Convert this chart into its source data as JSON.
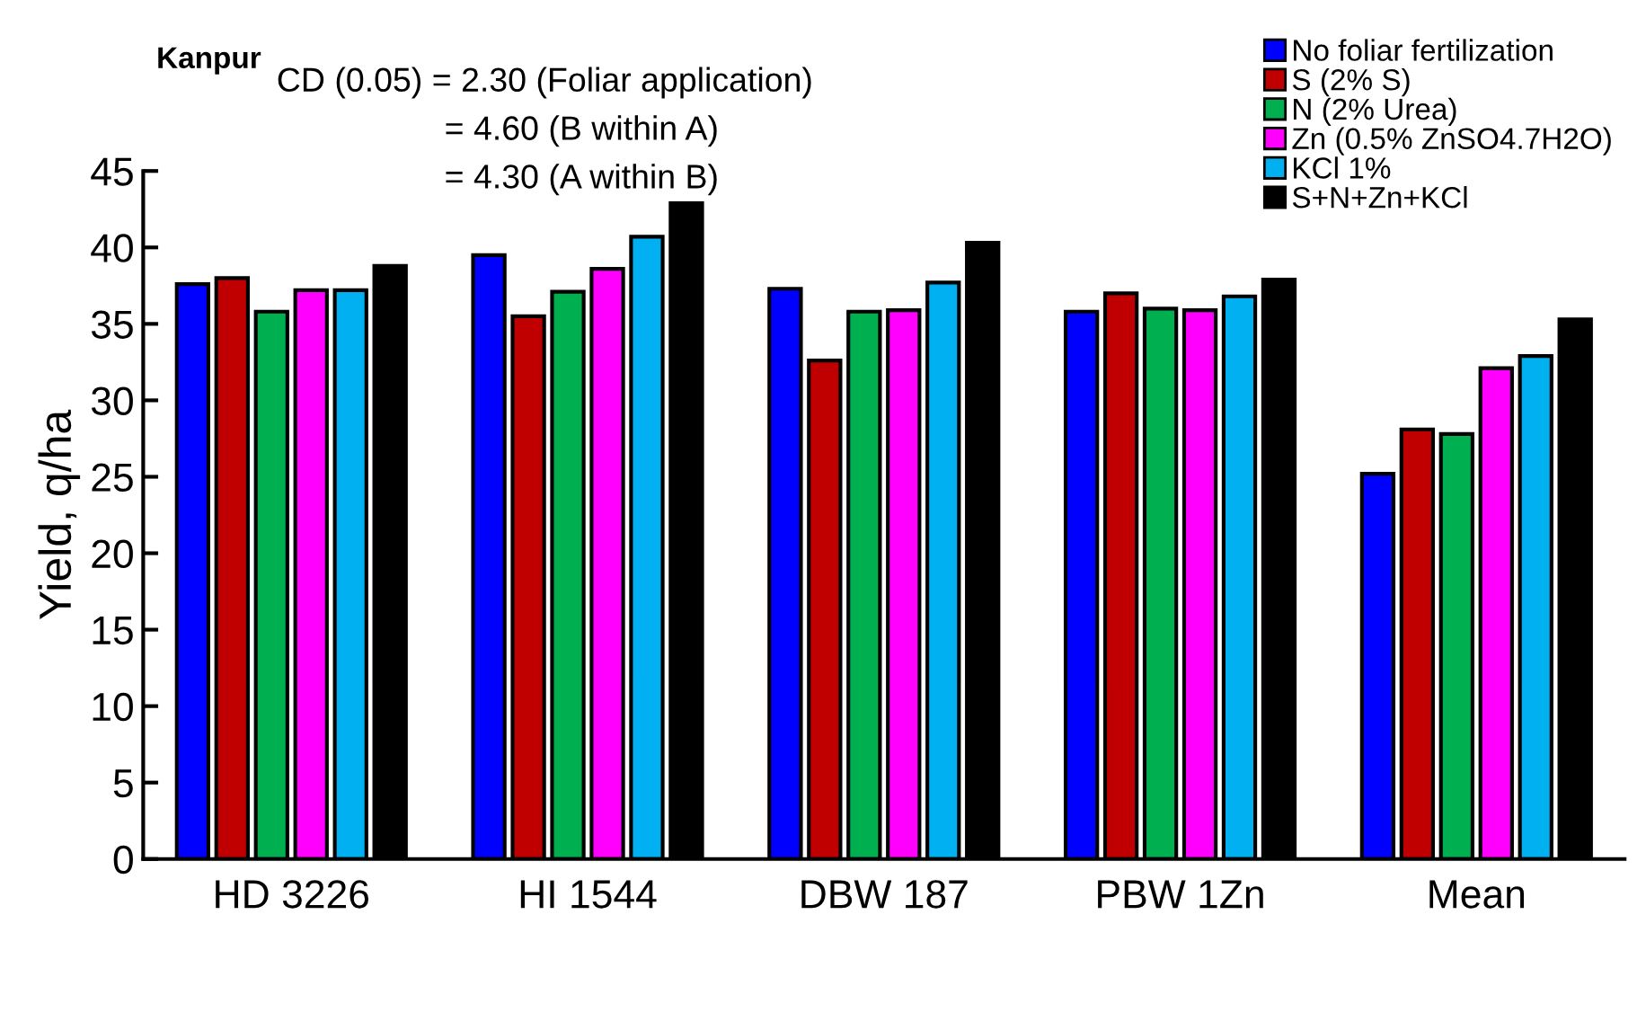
{
  "chart_data": {
    "type": "bar",
    "ylabel": "Yield, q/ha",
    "categories": [
      "HD 3226",
      "HI 1544",
      "DBW 187",
      "PBW 1Zn",
      "Mean"
    ],
    "series": [
      {
        "name": "No foliar fertilization",
        "color": "#0000ff",
        "values": [
          37.6,
          39.5,
          37.3,
          35.8,
          25.2
        ]
      },
      {
        "name": "S (2% S)",
        "color": "#c00000",
        "values": [
          38.0,
          35.5,
          32.6,
          37.0,
          28.1
        ]
      },
      {
        "name": "N (2% Urea)",
        "color": "#00b050",
        "values": [
          35.8,
          37.1,
          35.8,
          36.0,
          27.8
        ]
      },
      {
        "name": "Zn (0.5% ZnSO4.7H2O)",
        "color": "#ff00ff",
        "values": [
          37.2,
          38.6,
          35.9,
          35.9,
          32.1
        ]
      },
      {
        "name": "KCl 1%",
        "color": "#00b0f0",
        "values": [
          37.2,
          40.7,
          37.7,
          36.8,
          32.9
        ]
      },
      {
        "name": "S+N+Zn+KCl",
        "color": "#000000",
        "values": [
          38.8,
          42.9,
          40.3,
          37.9,
          35.3
        ]
      }
    ],
    "ylim": [
      0,
      45
    ],
    "yticks": [
      0,
      5,
      10,
      15,
      20,
      25,
      30,
      35,
      40,
      45
    ],
    "grid": false,
    "legend": "top right",
    "annotations": [
      "Kanpur",
      "CD (0.05) = 2.30 (Foliar application)",
      "= 4.60 (B within A)",
      "= 4.30 (A within B)"
    ]
  }
}
